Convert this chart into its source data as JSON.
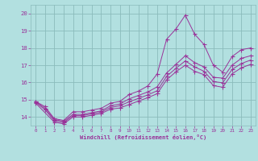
{
  "xlabel": "Windchill (Refroidissement éolien,°C)",
  "background_color": "#b2e0e0",
  "grid_color": "#aacccc",
  "line_color": "#993399",
  "xlim": [
    -0.5,
    23.5
  ],
  "ylim": [
    13.5,
    20.5
  ],
  "xticks": [
    0,
    1,
    2,
    3,
    4,
    5,
    6,
    7,
    8,
    9,
    10,
    11,
    12,
    13,
    14,
    15,
    16,
    17,
    18,
    19,
    20,
    21,
    22,
    23
  ],
  "yticks": [
    14,
    15,
    16,
    17,
    18,
    19,
    20
  ],
  "line1_x": [
    0,
    1,
    2,
    3,
    4,
    5,
    6,
    7,
    8,
    9,
    10,
    11,
    12,
    13,
    14,
    15,
    16,
    17,
    18,
    19,
    20,
    21,
    22,
    23
  ],
  "line1_y": [
    14.9,
    14.6,
    13.9,
    13.8,
    14.3,
    14.3,
    14.4,
    14.5,
    14.8,
    14.9,
    15.3,
    15.5,
    15.8,
    16.5,
    18.5,
    19.1,
    19.9,
    18.8,
    18.2,
    17.0,
    16.6,
    17.5,
    17.9,
    18.0
  ],
  "line2_x": [
    0,
    1,
    2,
    3,
    4,
    5,
    6,
    7,
    8,
    9,
    10,
    11,
    12,
    13,
    14,
    15,
    16,
    17,
    18,
    19,
    20,
    21,
    22,
    23
  ],
  "line2_y": [
    14.9,
    14.5,
    13.85,
    13.75,
    14.15,
    14.15,
    14.25,
    14.35,
    14.65,
    14.75,
    15.05,
    15.25,
    15.45,
    15.75,
    16.55,
    17.05,
    17.55,
    17.15,
    16.9,
    16.3,
    16.25,
    17.0,
    17.4,
    17.55
  ],
  "line3_x": [
    0,
    1,
    2,
    3,
    4,
    5,
    6,
    7,
    8,
    9,
    10,
    11,
    12,
    13,
    14,
    15,
    16,
    17,
    18,
    19,
    20,
    21,
    22,
    23
  ],
  "line3_y": [
    14.85,
    14.42,
    13.78,
    13.68,
    14.08,
    14.08,
    14.18,
    14.28,
    14.55,
    14.65,
    14.88,
    15.08,
    15.28,
    15.52,
    16.35,
    16.82,
    17.25,
    16.9,
    16.65,
    16.05,
    15.98,
    16.75,
    17.1,
    17.3
  ],
  "line4_x": [
    0,
    2,
    3,
    4,
    5,
    6,
    7,
    8,
    9,
    10,
    11,
    12,
    13,
    14,
    15,
    16,
    17,
    18,
    19,
    20,
    21,
    22,
    23
  ],
  "line4_y": [
    14.8,
    13.7,
    13.6,
    14.0,
    14.0,
    14.1,
    14.2,
    14.45,
    14.52,
    14.72,
    14.92,
    15.12,
    15.35,
    16.15,
    16.62,
    17.0,
    16.65,
    16.45,
    15.82,
    15.72,
    16.5,
    16.85,
    17.05
  ]
}
